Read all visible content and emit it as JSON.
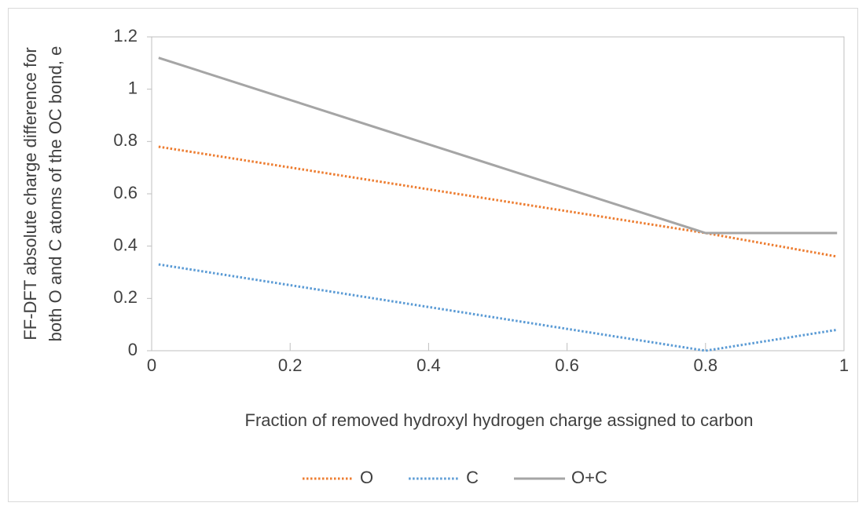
{
  "chart_data": {
    "type": "line",
    "xlabel": "Fraction of removed  hydroxyl hydrogen charge assigned to carbon",
    "ylabel": [
      "FF-DFT absolute charge difference for",
      "both O and C atoms of the OC bond, e"
    ],
    "x": [
      0.01,
      0.8,
      0.99
    ],
    "series": [
      {
        "name": "O",
        "color": "#ed7d31",
        "dash": "dotted",
        "values": [
          0.78,
          0.45,
          0.36
        ]
      },
      {
        "name": "C",
        "color": "#5b9bd5",
        "dash": "dotted",
        "values": [
          0.33,
          0,
          0.08
        ]
      },
      {
        "name": "O+C",
        "color": "#a5a5a5",
        "dash": "solid",
        "values": [
          1.12,
          0.45,
          0.45
        ]
      }
    ],
    "xlim": [
      0,
      1
    ],
    "xticks": [
      0,
      0.2,
      0.4,
      0.6,
      0.8,
      1
    ],
    "ylim": [
      0,
      1.2
    ],
    "yticks": [
      0,
      0.2,
      0.4,
      0.6,
      0.8,
      1,
      1.2
    ],
    "grid": false,
    "legend": "bottom"
  }
}
